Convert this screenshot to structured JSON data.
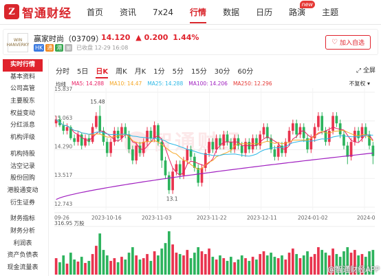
{
  "nav": {
    "logo_mark": "Z",
    "logo_text": "智通财经",
    "items": [
      {
        "label": "首页"
      },
      {
        "label": "资讯"
      },
      {
        "label": "7x24"
      },
      {
        "label": "行情",
        "active": true
      },
      {
        "label": "数据"
      },
      {
        "label": "日历"
      },
      {
        "label": "路演",
        "badge": "new"
      },
      {
        "label": "主题"
      }
    ]
  },
  "stock": {
    "logo_text": "WIN HANVERKY",
    "name": "赢家时尚（03709）",
    "price": "14.120",
    "arrow": "▲",
    "change": "0.200",
    "change_pct": "1.44%",
    "tags": [
      "HK",
      "通",
      "港",
      "⊞"
    ],
    "time": "已收盘 12-29 16:08",
    "watch_label": "加入自选",
    "watch_icon": "heart-icon"
  },
  "sidebar": {
    "group1": [
      "实时行情",
      "基本资料",
      "公司高管",
      "主要股东",
      "权益变动",
      "分红派息",
      "机构评级"
    ],
    "group2": [
      "机构持股",
      "沽空记录",
      "股份回购",
      "港股通变动",
      "衍生证券"
    ],
    "group3": [
      "财务指标",
      "财务分析",
      "利润表",
      "资产负债表",
      "现金流量表"
    ]
  },
  "chart": {
    "timeframes": [
      "分时",
      "5日",
      "日K",
      "周K",
      "月K",
      "1分",
      "5分",
      "15分",
      "30分",
      "60分"
    ],
    "active_timeframe": "日K",
    "fullscreen_label": "全屏",
    "ma_label": "均线",
    "ma": [
      {
        "name": "MA5:",
        "value": "14.288",
        "color": "#e91e63"
      },
      {
        "name": "MA10:",
        "value": "14.47",
        "color": "#f5a623"
      },
      {
        "name": "MA25:",
        "value": "14.288",
        "color": "#2ab7e5"
      },
      {
        "name": "MA100:",
        "value": "14.206",
        "color": "#a020c0"
      },
      {
        "name": "MA250:",
        "value": "12.296",
        "color": "#e53935"
      }
    ],
    "adjust_label": "不复权",
    "y_ticks": [
      "15.837",
      "15.063",
      "14.290",
      "13.517",
      "12.743"
    ],
    "x_labels": [
      "09-26",
      "2023-10-16",
      "2023-11-03",
      "2023-11-22",
      "2023-12-11",
      "2024-01-02",
      "2024-0"
    ],
    "max_label": "15.48",
    "min_label": "13.1",
    "volume_label": "316.95 万股",
    "watermark": "智通财经",
    "bottom_watermark": "@智通财经APP"
  },
  "chart_data": {
    "type": "candlestick",
    "y_ticks": [
      15.837,
      15.063,
      14.29,
      13.517,
      12.743
    ],
    "ylim": [
      12.743,
      15.837
    ],
    "x_tick_labels": [
      "09-26",
      "2023-10-16",
      "2023-11-03",
      "2023-11-22",
      "2023-12-11",
      "2024-01-02",
      "2024-0"
    ],
    "annotations": [
      {
        "text": "15.48",
        "kind": "max"
      },
      {
        "text": "13.1",
        "kind": "min"
      }
    ],
    "volume_unit": "万股",
    "volume_max_label": "316.95",
    "ma_series": [
      {
        "name": "MA5",
        "value": 14.288
      },
      {
        "name": "MA10",
        "value": 14.47
      },
      {
        "name": "MA25",
        "value": 14.288
      },
      {
        "name": "MA100",
        "value": 14.206
      },
      {
        "name": "MA250",
        "value": 12.296
      }
    ],
    "candles": [
      [
        15.0,
        15.1,
        14.9,
        15.2
      ],
      [
        15.1,
        14.95,
        14.9,
        15.2
      ],
      [
        14.95,
        14.8,
        14.7,
        15.05
      ],
      [
        14.8,
        14.9,
        14.7,
        15.0
      ],
      [
        14.9,
        14.6,
        14.55,
        14.95
      ],
      [
        14.6,
        14.5,
        14.4,
        14.7
      ],
      [
        14.5,
        14.7,
        14.4,
        14.8
      ],
      [
        14.7,
        14.4,
        14.3,
        14.75
      ],
      [
        14.4,
        14.6,
        14.35,
        14.7
      ],
      [
        14.6,
        14.5,
        14.4,
        14.7
      ],
      [
        14.5,
        14.9,
        14.45,
        15.0
      ],
      [
        14.9,
        15.2,
        14.85,
        15.3
      ],
      [
        15.2,
        14.8,
        14.7,
        15.48
      ],
      [
        14.8,
        14.5,
        14.4,
        14.9
      ],
      [
        14.5,
        14.2,
        14.1,
        14.6
      ],
      [
        14.2,
        14.5,
        14.1,
        14.6
      ],
      [
        14.5,
        14.8,
        14.4,
        14.9
      ],
      [
        14.8,
        14.6,
        14.5,
        14.9
      ],
      [
        14.6,
        14.9,
        14.5,
        15.0
      ],
      [
        14.9,
        14.7,
        14.6,
        15.0
      ],
      [
        14.7,
        14.3,
        14.2,
        14.8
      ],
      [
        14.3,
        14.0,
        13.9,
        14.4
      ],
      [
        14.0,
        14.4,
        13.9,
        14.5
      ],
      [
        14.4,
        14.2,
        14.1,
        14.5
      ],
      [
        14.2,
        14.5,
        14.1,
        14.6
      ],
      [
        14.5,
        14.8,
        14.4,
        14.9
      ],
      [
        14.8,
        14.6,
        14.5,
        14.9
      ],
      [
        14.6,
        14.95,
        14.5,
        15.05
      ],
      [
        14.95,
        14.5,
        14.4,
        15.0
      ],
      [
        14.5,
        14.0,
        13.8,
        14.6
      ],
      [
        14.0,
        13.6,
        13.5,
        14.1
      ],
      [
        13.6,
        13.2,
        13.1,
        13.7
      ],
      [
        13.2,
        13.7,
        13.1,
        13.8
      ],
      [
        13.7,
        13.9,
        13.6,
        14.0
      ],
      [
        13.9,
        13.6,
        13.5,
        14.0
      ],
      [
        13.6,
        14.0,
        13.5,
        14.1
      ],
      [
        14.0,
        14.3,
        13.9,
        14.4
      ],
      [
        14.3,
        14.1,
        14.0,
        14.4
      ],
      [
        14.1,
        13.8,
        13.7,
        14.2
      ],
      [
        13.8,
        13.4,
        13.3,
        13.9
      ],
      [
        13.4,
        13.8,
        13.3,
        13.9
      ],
      [
        13.8,
        14.2,
        13.7,
        14.3
      ],
      [
        14.2,
        14.5,
        14.1,
        14.6
      ],
      [
        14.5,
        14.3,
        14.2,
        14.6
      ],
      [
        14.3,
        14.6,
        14.2,
        14.7
      ],
      [
        14.6,
        14.4,
        14.3,
        14.7
      ],
      [
        14.4,
        14.7,
        14.3,
        14.8
      ],
      [
        14.7,
        14.5,
        14.4,
        14.8
      ],
      [
        14.5,
        14.3,
        14.2,
        14.6
      ],
      [
        14.3,
        14.6,
        14.2,
        14.7
      ],
      [
        14.6,
        14.4,
        14.3,
        14.7
      ],
      [
        14.4,
        14.2,
        14.1,
        14.5
      ],
      [
        14.2,
        14.5,
        14.1,
        14.6
      ],
      [
        14.5,
        14.3,
        14.2,
        14.6
      ],
      [
        14.3,
        14.6,
        14.2,
        14.7
      ],
      [
        14.6,
        14.4,
        14.3,
        14.7
      ],
      [
        14.4,
        14.7,
        14.3,
        14.8
      ],
      [
        14.7,
        14.9,
        14.6,
        15.0
      ],
      [
        14.9,
        14.6,
        14.5,
        15.0
      ],
      [
        14.6,
        14.3,
        14.2,
        14.7
      ],
      [
        14.3,
        14.1,
        14.0,
        14.4
      ],
      [
        14.1,
        14.4,
        14.0,
        14.5
      ],
      [
        14.4,
        14.2,
        14.1,
        14.5
      ],
      [
        14.2,
        14.5,
        14.1,
        14.6
      ],
      [
        14.5,
        14.8,
        14.4,
        14.9
      ],
      [
        14.8,
        15.0,
        14.7,
        15.1
      ],
      [
        15.0,
        14.7,
        14.6,
        15.1
      ],
      [
        14.7,
        14.9,
        14.6,
        15.0
      ],
      [
        14.9,
        14.6,
        14.5,
        15.0
      ],
      [
        14.6,
        14.3,
        14.2,
        14.7
      ],
      [
        14.3,
        14.6,
        14.2,
        14.7
      ],
      [
        14.6,
        14.9,
        14.5,
        15.0
      ],
      [
        14.9,
        15.2,
        14.8,
        15.3
      ],
      [
        15.2,
        14.8,
        14.7,
        15.3
      ],
      [
        14.8,
        14.5,
        14.4,
        14.9
      ],
      [
        14.5,
        14.8,
        14.4,
        14.9
      ],
      [
        14.8,
        15.2,
        14.7,
        15.3
      ],
      [
        15.2,
        15.0,
        14.9,
        15.3
      ],
      [
        15.0,
        14.7,
        14.6,
        15.1
      ],
      [
        14.7,
        14.4,
        14.3,
        14.8
      ],
      [
        14.4,
        14.1,
        13.9,
        14.5
      ],
      [
        14.1,
        14.5,
        14.0,
        14.6
      ],
      [
        14.5,
        14.8,
        14.4,
        14.9
      ],
      [
        14.8,
        14.6,
        14.5,
        14.9
      ],
      [
        14.6,
        14.9,
        14.5,
        15.0
      ],
      [
        14.9,
        14.7,
        14.6,
        15.0
      ],
      [
        14.7,
        14.4,
        14.3,
        14.8
      ],
      [
        14.4,
        14.12,
        13.9,
        14.5
      ]
    ],
    "volumes": [
      120,
      90,
      140,
      80,
      160,
      110,
      95,
      130,
      85,
      100,
      150,
      210,
      300,
      180,
      140,
      100,
      120,
      90,
      130,
      110,
      160,
      200,
      140,
      110,
      120,
      150,
      100,
      170,
      140,
      190,
      230,
      316,
      220,
      160,
      150,
      140,
      180,
      120,
      160,
      200,
      170,
      150,
      190,
      130,
      110,
      140,
      120,
      100,
      130,
      90,
      110,
      140,
      120,
      100,
      130,
      110,
      150,
      170,
      140,
      160,
      130,
      120,
      140,
      110,
      160,
      190,
      150,
      120,
      140,
      170,
      130,
      150,
      200,
      180,
      160,
      140,
      190,
      150,
      130,
      170,
      200,
      160,
      180,
      140,
      150,
      130,
      170,
      180
    ]
  }
}
